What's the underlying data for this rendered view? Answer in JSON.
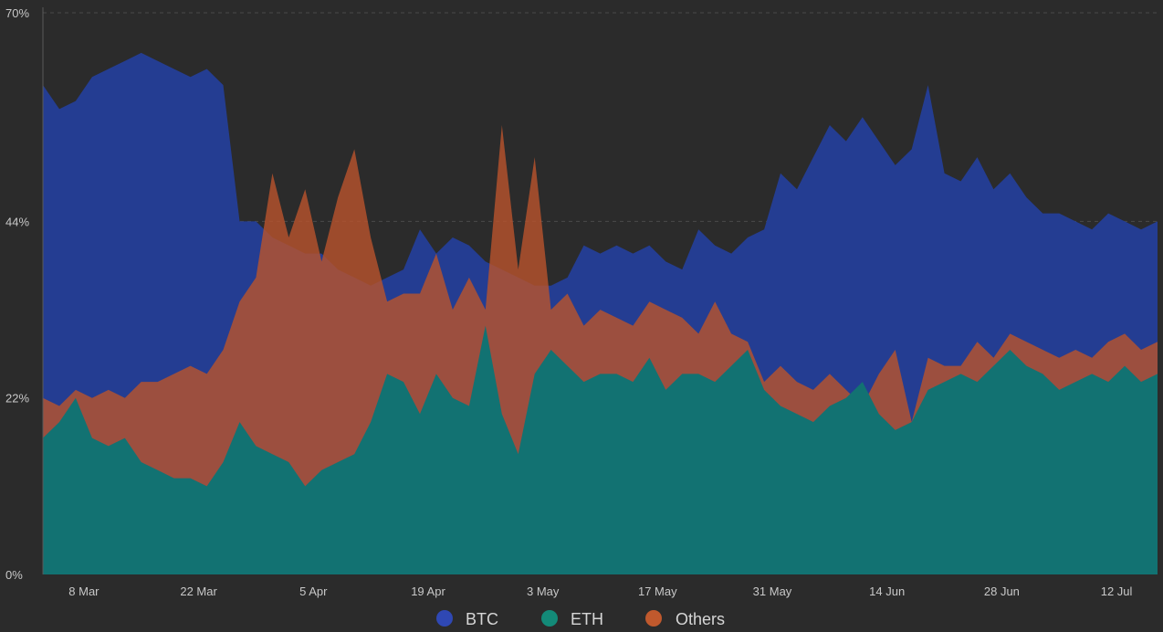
{
  "chart_data": {
    "type": "area",
    "title": "",
    "xlabel": "",
    "ylabel": "",
    "y_ticks": [
      "0%",
      "22%",
      "44%",
      "70%"
    ],
    "y_tick_values": [
      0,
      22,
      44,
      70
    ],
    "ylim": [
      0,
      70
    ],
    "x_ticks": [
      "8 Mar",
      "22 Mar",
      "5 Apr",
      "19 Apr",
      "3 May",
      "17 May",
      "31 May",
      "14 Jun",
      "28 Jun",
      "12 Jul"
    ],
    "x_tick_days": [
      5,
      19,
      33,
      47,
      61,
      75,
      89,
      103,
      117,
      131
    ],
    "xlim_days": [
      0,
      136
    ],
    "grid": "dashed horizontal",
    "legend_position": "bottom",
    "series": [
      {
        "name": "ETH",
        "color": "#127272",
        "days": [
          0,
          2,
          4,
          6,
          8,
          10,
          12,
          14,
          16,
          18,
          20,
          22,
          24,
          26,
          28,
          30,
          32,
          34,
          36,
          38,
          40,
          42,
          44,
          46,
          48,
          50,
          52,
          54,
          56,
          58,
          60,
          62,
          64,
          66,
          68,
          70,
          72,
          74,
          76,
          78,
          80,
          82,
          84,
          86,
          88,
          90,
          92,
          94,
          96,
          98,
          100,
          102,
          104,
          106,
          108,
          110,
          112,
          114,
          116,
          118,
          120,
          122,
          124,
          126,
          128,
          130,
          132,
          134,
          136
        ],
        "values": [
          17,
          19,
          22,
          17,
          16,
          17,
          14,
          13,
          12,
          12,
          11,
          14,
          19,
          16,
          15,
          14,
          11,
          13,
          14,
          15,
          19,
          25,
          24,
          20,
          25,
          22,
          21,
          31,
          20,
          15,
          25,
          28,
          26,
          24,
          25,
          25,
          24,
          27,
          23,
          25,
          25,
          24,
          26,
          28,
          23,
          21,
          20,
          19,
          21,
          22,
          24,
          20,
          18,
          19,
          23,
          24,
          25,
          24,
          26,
          28,
          26,
          25,
          23,
          24,
          25,
          24,
          26,
          24,
          25
        ]
      },
      {
        "name": "Others",
        "color": "#b7532d",
        "days": [
          0,
          2,
          4,
          6,
          8,
          10,
          12,
          14,
          16,
          18,
          20,
          22,
          24,
          26,
          28,
          30,
          32,
          34,
          36,
          38,
          40,
          42,
          44,
          46,
          48,
          50,
          52,
          54,
          56,
          58,
          60,
          62,
          64,
          66,
          68,
          70,
          72,
          74,
          76,
          78,
          80,
          82,
          84,
          86,
          88,
          90,
          92,
          94,
          96,
          98,
          100,
          102,
          104,
          106,
          108,
          110,
          112,
          114,
          116,
          118,
          120,
          122,
          124,
          126,
          128,
          130,
          132,
          134,
          136
        ],
        "values": [
          22,
          21,
          23,
          22,
          23,
          22,
          24,
          24,
          25,
          26,
          25,
          28,
          34,
          37,
          50,
          42,
          48,
          39,
          47,
          53,
          42,
          34,
          35,
          35,
          40,
          33,
          37,
          33,
          56,
          38,
          52,
          33,
          35,
          31,
          33,
          32,
          31,
          34,
          33,
          32,
          30,
          34,
          30,
          29,
          24,
          26,
          24,
          23,
          25,
          23,
          21,
          25,
          28,
          19,
          27,
          26,
          26,
          29,
          27,
          30,
          29,
          28,
          27,
          28,
          27,
          29,
          30,
          28,
          29
        ]
      },
      {
        "name": "BTC",
        "color": "#243d92",
        "days": [
          0,
          2,
          4,
          6,
          8,
          10,
          12,
          14,
          16,
          18,
          20,
          22,
          24,
          26,
          28,
          30,
          32,
          34,
          36,
          38,
          40,
          42,
          44,
          46,
          48,
          50,
          52,
          54,
          56,
          58,
          60,
          62,
          64,
          66,
          68,
          70,
          72,
          74,
          76,
          78,
          80,
          82,
          84,
          86,
          88,
          90,
          92,
          94,
          96,
          98,
          100,
          102,
          104,
          106,
          108,
          110,
          112,
          114,
          116,
          118,
          120,
          122,
          124,
          126,
          128,
          130,
          132,
          134,
          136
        ],
        "values": [
          61,
          58,
          59,
          62,
          63,
          64,
          65,
          64,
          63,
          62,
          63,
          61,
          44,
          44,
          42,
          41,
          40,
          40,
          38,
          37,
          36,
          37,
          38,
          43,
          40,
          42,
          41,
          39,
          38,
          37,
          36,
          36,
          37,
          41,
          40,
          41,
          40,
          41,
          39,
          38,
          43,
          41,
          40,
          42,
          43,
          50,
          48,
          52,
          56,
          54,
          57,
          54,
          51,
          53,
          61,
          50,
          49,
          52,
          48,
          50,
          47,
          45,
          45,
          44,
          43,
          45,
          44,
          43,
          44
        ]
      }
    ]
  },
  "legend": [
    {
      "label": "BTC",
      "color": "#2f48b4"
    },
    {
      "label": "ETH",
      "color": "#138a78"
    },
    {
      "label": "Others",
      "color": "#c0592d"
    }
  ],
  "colors": {
    "background": "#2b2b2b",
    "grid": "#4a4a4a",
    "axis": "#5a5a5a",
    "text": "#c8c8c8"
  }
}
